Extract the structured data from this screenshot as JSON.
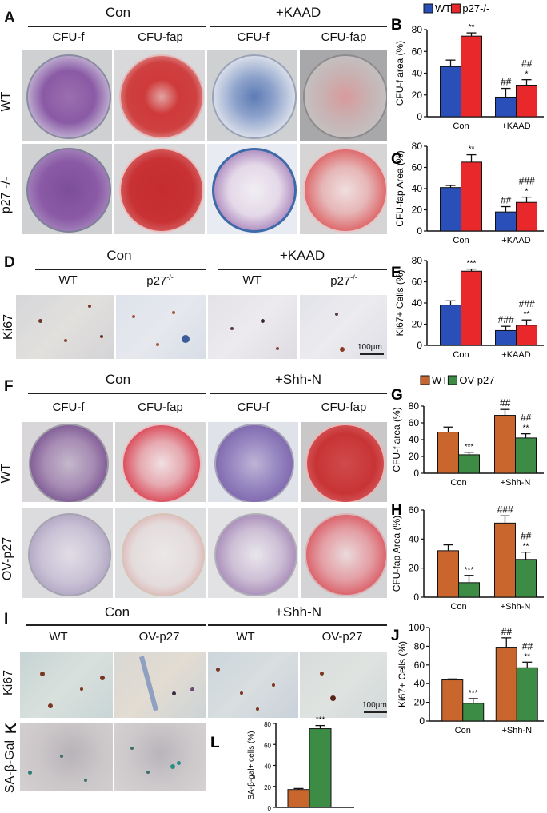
{
  "panels": {
    "A": {
      "label": "A",
      "groups": [
        "Con",
        "+KAAD"
      ],
      "columns": [
        "CFU-f",
        "CFU-fap",
        "CFU-f",
        "CFU-fap"
      ],
      "rows": [
        "WT",
        "p27 -/-"
      ]
    },
    "D": {
      "label": "D",
      "groups": [
        "Con",
        "+KAAD"
      ],
      "columns": [
        "WT",
        "p27",
        "WT",
        "p27"
      ],
      "column_superscripts": [
        "",
        "-/-",
        "",
        "-/-"
      ],
      "rows": [
        "Ki67"
      ],
      "scale_bar": "100μm"
    },
    "F": {
      "label": "F",
      "groups": [
        "Con",
        "+Shh-N"
      ],
      "columns": [
        "CFU-f",
        "CFU-fap",
        "CFU-f",
        "CFU-fap"
      ],
      "rows": [
        "WT",
        "OV-p27"
      ]
    },
    "I": {
      "label": "I",
      "groups": [
        "Con",
        "+Shh-N"
      ],
      "columns": [
        "WT",
        "OV-p27",
        "WT",
        "OV-p27"
      ],
      "rows": [
        "Ki67"
      ],
      "scale_bar": "100μm"
    },
    "K": {
      "label": "K",
      "rows": [
        "SA-β-Gal"
      ]
    }
  },
  "colors": {
    "wt_blue": "#2b4fb8",
    "p27ko_red": "#e8282b",
    "wt_orange": "#c8662e",
    "ovp27_green": "#3d8c45"
  },
  "chart_data": [
    {
      "panel": "B",
      "type": "bar",
      "title": "",
      "legend": [
        "WT",
        "p27-/-"
      ],
      "legend_position": "top",
      "categories": [
        "Con",
        "+KAAD"
      ],
      "series": [
        {
          "name": "WT",
          "values": [
            46,
            18
          ],
          "errors": [
            6,
            8
          ],
          "annotations": [
            "",
            "##"
          ]
        },
        {
          "name": "p27-/-",
          "values": [
            74,
            29
          ],
          "errors": [
            3,
            5
          ],
          "annotations": [
            "**",
            "##\n*"
          ]
        }
      ],
      "xlabel": "",
      "ylabel": "CFU-f area (%)",
      "yticks": [
        0,
        20,
        40,
        60,
        80
      ],
      "ylim": [
        0,
        80
      ]
    },
    {
      "panel": "C",
      "type": "bar",
      "title": "",
      "categories": [
        "Con",
        "+KAAD"
      ],
      "series": [
        {
          "name": "WT",
          "values": [
            41,
            18
          ],
          "errors": [
            2,
            5
          ],
          "annotations": [
            "",
            "##"
          ]
        },
        {
          "name": "p27-/-",
          "values": [
            65,
            27
          ],
          "errors": [
            7,
            5
          ],
          "annotations": [
            "**",
            "###\n*"
          ]
        }
      ],
      "xlabel": "",
      "ylabel": "CFU-fap Area (%)",
      "yticks": [
        0,
        20,
        40,
        60,
        80
      ],
      "ylim": [
        0,
        80
      ]
    },
    {
      "panel": "E",
      "type": "bar",
      "title": "",
      "categories": [
        "Con",
        "+KAAD"
      ],
      "series": [
        {
          "name": "WT",
          "values": [
            38,
            14
          ],
          "errors": [
            4,
            4
          ],
          "annotations": [
            "",
            "###"
          ]
        },
        {
          "name": "p27-/-",
          "values": [
            70,
            19
          ],
          "errors": [
            2,
            5
          ],
          "annotations": [
            "***",
            "###\n**"
          ]
        }
      ],
      "xlabel": "",
      "ylabel": "Ki67+ Cells (%)",
      "yticks": [
        0,
        20,
        40,
        60,
        80
      ],
      "ylim": [
        0,
        80
      ]
    },
    {
      "panel": "G",
      "type": "bar",
      "title": "",
      "legend": [
        "WT",
        "OV-p27"
      ],
      "legend_position": "top",
      "categories": [
        "Con",
        "+Shh-N"
      ],
      "series": [
        {
          "name": "WT",
          "values": [
            49,
            69
          ],
          "errors": [
            6,
            7
          ],
          "annotations": [
            "",
            "##"
          ]
        },
        {
          "name": "OV-p27",
          "values": [
            22,
            42
          ],
          "errors": [
            3,
            5
          ],
          "annotations": [
            "***",
            "##\n**"
          ]
        }
      ],
      "xlabel": "",
      "ylabel": "CFU-f area (%)",
      "yticks": [
        0,
        20,
        40,
        60,
        80
      ],
      "ylim": [
        0,
        80
      ]
    },
    {
      "panel": "H",
      "type": "bar",
      "title": "",
      "categories": [
        "Con",
        "+Shh-N"
      ],
      "series": [
        {
          "name": "WT",
          "values": [
            32,
            51
          ],
          "errors": [
            4,
            5
          ],
          "annotations": [
            "",
            "###"
          ]
        },
        {
          "name": "OV-p27",
          "values": [
            10,
            26
          ],
          "errors": [
            5,
            5
          ],
          "annotations": [
            "***",
            "##\n**"
          ]
        }
      ],
      "xlabel": "",
      "ylabel": "CFU-fap Area (%)",
      "yticks": [
        0,
        20,
        40,
        60
      ],
      "ylim": [
        0,
        60
      ]
    },
    {
      "panel": "J",
      "type": "bar",
      "title": "",
      "categories": [
        "Con",
        "+Shh-N"
      ],
      "series": [
        {
          "name": "WT",
          "values": [
            44,
            79
          ],
          "errors": [
            1,
            10
          ],
          "annotations": [
            "",
            "##"
          ]
        },
        {
          "name": "OV-p27",
          "values": [
            19,
            57
          ],
          "errors": [
            5,
            6
          ],
          "annotations": [
            "***",
            "##\n**"
          ]
        }
      ],
      "xlabel": "",
      "ylabel": "Ki67+ Cells (%)",
      "yticks": [
        0,
        20,
        40,
        60,
        80,
        100
      ],
      "ylim": [
        0,
        100
      ]
    },
    {
      "panel": "L",
      "type": "bar",
      "title": "",
      "categories": [
        ""
      ],
      "series": [
        {
          "name": "WT",
          "values": [
            17
          ],
          "errors": [
            1
          ],
          "annotations": [
            ""
          ]
        },
        {
          "name": "OV-p27",
          "values": [
            75
          ],
          "errors": [
            3
          ],
          "annotations": [
            "***"
          ]
        }
      ],
      "xlabel": "",
      "ylabel": "SA-β-gal+ cells (%)",
      "yticks": [
        0,
        20,
        40,
        60,
        80
      ],
      "ylim": [
        0,
        80
      ]
    }
  ]
}
